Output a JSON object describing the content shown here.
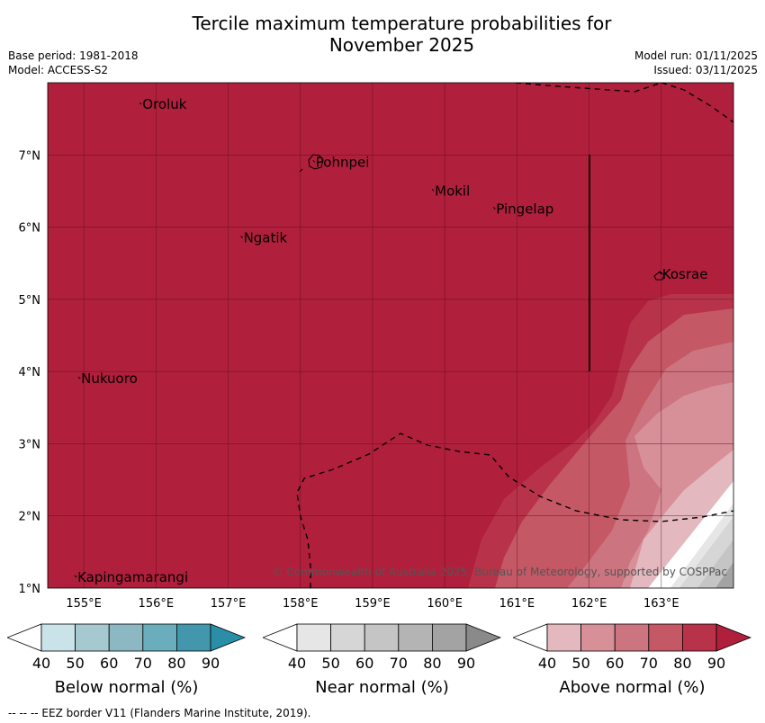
{
  "title_line1": "Tercile maximum temperature probabilities for",
  "title_line2": "November 2025",
  "meta_left": {
    "base_period": "Base period: 1981-2018",
    "model": "Model: ACCESS-S2"
  },
  "meta_right": {
    "model_run": "Model run: 01/11/2025",
    "issued": "Issued: 03/11/2025"
  },
  "map": {
    "lon_range": [
      154.5,
      164.0
    ],
    "lat_range": [
      1.0,
      8.0
    ],
    "lon_ticks": [
      155,
      156,
      157,
      158,
      159,
      160,
      161,
      162,
      163
    ],
    "lat_ticks": [
      1,
      2,
      3,
      4,
      5,
      6,
      7
    ],
    "lon_tick_labels": [
      "155°E",
      "156°E",
      "157°E",
      "158°E",
      "159°E",
      "160°E",
      "161°E",
      "162°E",
      "163°E"
    ],
    "lat_tick_labels": [
      "1°N",
      "2°N",
      "3°N",
      "4°N",
      "5°N",
      "6°N",
      "7°N"
    ],
    "grid": true,
    "dominant_category": "Above normal 80–90%",
    "places": [
      {
        "name": "Oroluk",
        "lon": 155.8,
        "lat": 7.65
      },
      {
        "name": "Pohnpei",
        "lon": 158.2,
        "lat": 6.85
      },
      {
        "name": "Mokil",
        "lon": 159.85,
        "lat": 6.45
      },
      {
        "name": "Pingelap",
        "lon": 160.7,
        "lat": 6.2
      },
      {
        "name": "Ngatik",
        "lon": 157.2,
        "lat": 5.8
      },
      {
        "name": "Kosrae",
        "lon": 163.0,
        "lat": 5.3
      },
      {
        "name": "Nukuoro",
        "lon": 154.95,
        "lat": 3.85
      },
      {
        "name": "Kapingamarangi",
        "lon": 154.9,
        "lat": 1.1
      }
    ],
    "copyright": "© Commonwealth of Australia 2025, Bureau of Meteorology, supported by COSPPac"
  },
  "colorbars": [
    {
      "label": "Below normal (%)",
      "ticks": [
        "40",
        "50",
        "60",
        "70",
        "80",
        "90"
      ],
      "colors": [
        "#ffffff",
        "#c9e3e9",
        "#a6c9d0",
        "#8bb8c3",
        "#6aadbd",
        "#4297ad",
        "#2a8ea9"
      ]
    },
    {
      "label": "Near normal (%)",
      "ticks": [
        "40",
        "50",
        "60",
        "70",
        "80",
        "90"
      ],
      "colors": [
        "#ffffff",
        "#e6e6e6",
        "#d6d6d6",
        "#c5c5c5",
        "#b4b4b4",
        "#a3a3a3",
        "#8a8a8a"
      ]
    },
    {
      "label": "Above normal (%)",
      "ticks": [
        "40",
        "50",
        "60",
        "70",
        "80",
        "90"
      ],
      "colors": [
        "#ffffff",
        "#e3b8bf",
        "#d78f98",
        "#cc7480",
        "#c45865",
        "#b8334a",
        "#b01f3c"
      ]
    }
  ],
  "footer": "--  --  -- EEZ border V11 (Flanders Marine Institute, 2019)."
}
